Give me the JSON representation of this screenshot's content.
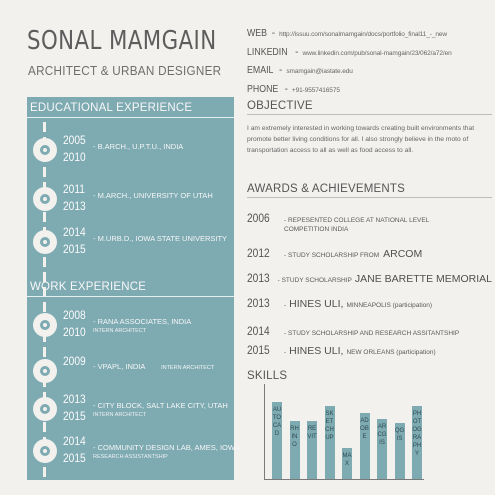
{
  "header": {
    "name": "SONAL MAMGAIN",
    "role": "ARCHITECT & URBAN DESIGNER"
  },
  "contact": [
    {
      "label": "WEB",
      "value": "http://issuu.com/sonalmamgain/docs/portfolio_final11_-_new"
    },
    {
      "label": "LINKEDIN",
      "value": "www.linkedin.com/pub/sonal-mamgain/23/062/a72/en"
    },
    {
      "label": "EMAIL",
      "value": "smamgain@iastate.edu"
    },
    {
      "label": "PHONE",
      "value": "+91-9557416575"
    }
  ],
  "education": {
    "title": "EDUCATIONAL EXPERIENCE",
    "items": [
      {
        "start": "2005",
        "end": "2010",
        "text": "- B.ARCH., U.P.T.U., INDIA"
      },
      {
        "start": "2011",
        "end": "2013",
        "text": "- M.ARCH., UNIVERSITY OF UTAH"
      },
      {
        "start": "2014",
        "end": "2015",
        "text": "- M.URB.D., IOWA STATE UNIVERSITY"
      }
    ]
  },
  "work": {
    "title": "WORK EXPERIENCE",
    "items": [
      {
        "start": "2008",
        "end": "2010",
        "text": "- RANA ASSOCIATES, INDIA",
        "sub": "INTERN ARCHITECT",
        "inline": ""
      },
      {
        "start": "2009",
        "end": "",
        "text": "- VPAPL, INDIA",
        "sub": "",
        "inline": "INTERN ARCHITECT"
      },
      {
        "start": "2013",
        "end": "2015",
        "text": "- CITY BLOCK, SALT LAKE CITY, UTAH",
        "sub": "INTERN ARCHITECT",
        "inline": ""
      },
      {
        "start": "2014",
        "end": "2015",
        "text": "- COMMUNITY DESIGN LAB, AMES, IOWA",
        "sub": "RESEARCH ASSISTANTSHIP",
        "inline": ""
      }
    ]
  },
  "objective": {
    "title": "OBJECTIVE",
    "text": "I am extremely interested in working towards creating built environments that promote better living conditions for all. I also strongly believe in the moto of transportation access to all as well as food access to all."
  },
  "awards": {
    "title": "AWARDS & ACHIEVEMENTS",
    "items": [
      {
        "year": "2006",
        "text": "- REPESENTED COLLEGE AT NATIONAL LEVEL COMPETITION INDIA",
        "big": "",
        "after": ""
      },
      {
        "year": "2012",
        "text": "- STUDY SCHOLARSHIP FROM",
        "big": "ARCOM",
        "after": ""
      },
      {
        "year": "2013",
        "text": "- STUDY SCHOLARSHIP",
        "big": "JANE BARETTE MEMORIAL",
        "after": ""
      },
      {
        "year": "2013",
        "text": "-",
        "big": "HINES ULI,",
        "after": "MINNEAPOLIS (participation)"
      },
      {
        "year": "2014",
        "text": "- STUDY SCHOLARSHIP AND RESEARCH ASSITANTSHIP",
        "big": "",
        "after": ""
      },
      {
        "year": "2015",
        "text": "-",
        "big": "HINES ULI,",
        "after": "NEW ORLEANS (participation)"
      }
    ]
  },
  "skills": {
    "title": "SKILLS",
    "accent": "#7eaab2"
  },
  "chart_data": {
    "type": "bar",
    "categories": [
      "AutoCAD",
      "RHINO",
      "REVIT",
      "SKETCHUP",
      "MAX",
      "ADOBE",
      "ARCGIS",
      "QGIS",
      "PHOTOGRAPHY"
    ],
    "labels": [
      "AUTOCAD",
      "RHINO",
      "REVIT",
      "SKETCH UP",
      "MAX",
      "ADOBE",
      "ARCGIS",
      "QGIS",
      "PHOTOGRAPHY"
    ],
    "values": [
      82,
      62,
      62,
      78,
      33,
      70,
      64,
      60,
      78
    ],
    "ylim": [
      0,
      100
    ]
  }
}
